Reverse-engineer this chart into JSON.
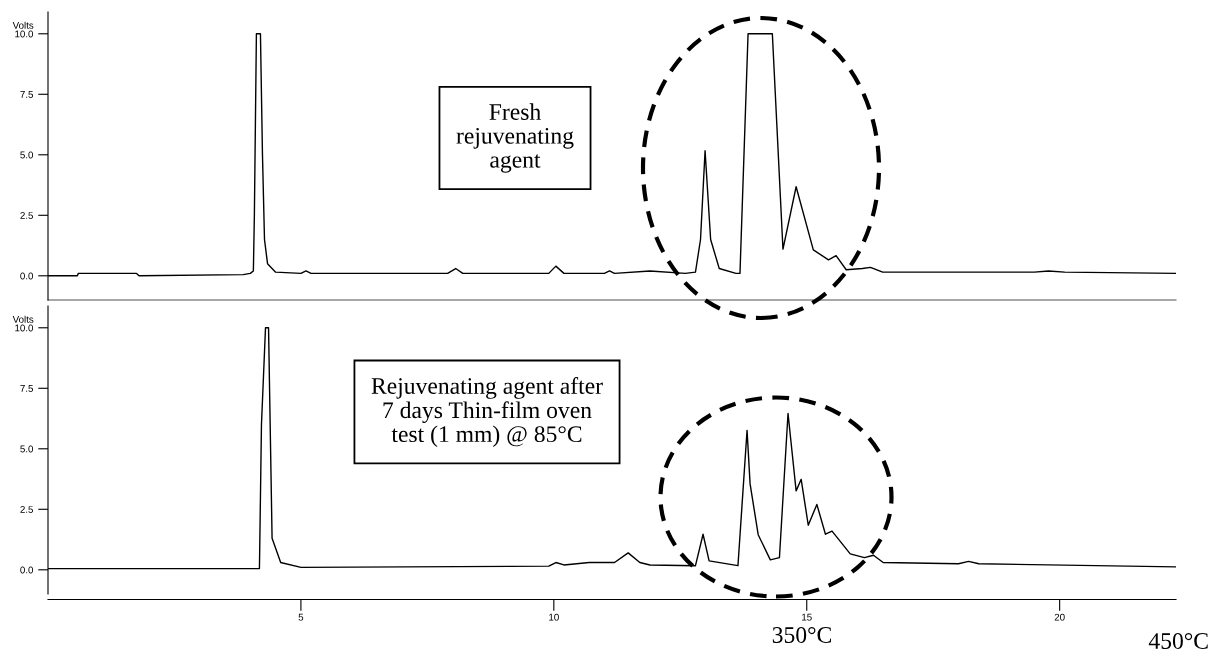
{
  "chart_data": [
    {
      "type": "line",
      "ylabel": "Volts",
      "xlim": [
        0,
        22.3
      ],
      "ylim": [
        -1,
        10.9
      ],
      "tick_labels": "y",
      "yticks": [
        {
          "value": 0,
          "label": "0.0"
        },
        {
          "value": 2.5,
          "label": "2.5"
        },
        {
          "value": 5,
          "label": "5.0"
        },
        {
          "value": 7.5,
          "label": "7.5"
        },
        {
          "value": 10,
          "label": "10.0"
        }
      ],
      "annotations": [
        "Fresh\nrejuvenating\nagent"
      ],
      "series": [
        {
          "color": "#000000",
          "x": [
            0,
            0.58,
            0.6,
            1.75,
            1.8,
            3.86,
            4.0,
            4.06,
            4.08,
            4.12,
            4.2,
            4.24,
            4.28,
            4.34,
            4.5,
            5.0,
            5.1,
            5.2,
            7.9,
            8.06,
            8.2,
            9.9,
            10.04,
            10.2,
            11.0,
            11.1,
            11.2,
            11.9,
            12.6,
            12.8,
            12.9,
            12.99,
            13.1,
            13.27,
            13.6,
            13.68,
            13.84,
            14.32,
            14.53,
            14.79,
            15.13,
            15.43,
            15.58,
            15.78,
            16.1,
            16.26,
            16.5,
            19.5,
            19.78,
            20.1,
            22.3
          ],
          "values": [
            0.0,
            0.0,
            0.1,
            0.1,
            0.0,
            0.05,
            0.1,
            0.2,
            2.5,
            10,
            10,
            5,
            1.5,
            0.5,
            0.15,
            0.1,
            0.2,
            0.1,
            0.1,
            0.3,
            0.1,
            0.1,
            0.4,
            0.1,
            0.1,
            0.2,
            0.1,
            0.2,
            0.1,
            0.15,
            1.5,
            5.17,
            1.5,
            0.3,
            0.1,
            0.1,
            10,
            10,
            1.1,
            3.68,
            1.07,
            0.66,
            0.83,
            0.25,
            0.3,
            0.35,
            0.15,
            0.15,
            0.2,
            0.15,
            0.1
          ]
        }
      ]
    },
    {
      "type": "line",
      "ylabel": "Volts",
      "xlim": [
        0,
        22.3
      ],
      "ylim": [
        -1,
        10.9
      ],
      "xticks": [
        5,
        10,
        15,
        20
      ],
      "yticks": [
        {
          "value": 0,
          "label": "0.0"
        },
        {
          "value": 2.5,
          "label": "2.5"
        },
        {
          "value": 5,
          "label": "5.0"
        },
        {
          "value": 7.5,
          "label": "7.5"
        },
        {
          "value": 10,
          "label": "10.0"
        }
      ],
      "annotations": [
        "Rejuvenating agent after\n7 days Thin-film oven\ntest (1 mm) @ 85°C",
        "350°C",
        "450°C"
      ],
      "series": [
        {
          "color": "#000000",
          "x": [
            0,
            4.18,
            4.22,
            4.3,
            4.36,
            4.43,
            4.6,
            5.0,
            9.9,
            10.04,
            10.2,
            10.7,
            11.2,
            11.47,
            11.7,
            11.9,
            12.8,
            12.95,
            13.07,
            13.64,
            13.82,
            13.88,
            14.04,
            14.28,
            14.46,
            14.63,
            14.79,
            14.89,
            15.03,
            15.2,
            15.37,
            15.5,
            15.86,
            16.14,
            16.32,
            16.51,
            18.0,
            18.2,
            18.4,
            22.3
          ],
          "values": [
            0.05,
            0.05,
            6,
            10,
            10,
            1.3,
            0.3,
            0.1,
            0.15,
            0.3,
            0.2,
            0.3,
            0.3,
            0.7,
            0.3,
            0.2,
            0.17,
            1.47,
            0.37,
            0.17,
            5.76,
            3.55,
            1.45,
            0.41,
            0.5,
            6.46,
            3.26,
            3.74,
            1.84,
            2.7,
            1.47,
            1.6,
            0.66,
            0.5,
            0.6,
            0.3,
            0.25,
            0.35,
            0.25,
            0.12
          ]
        }
      ]
    }
  ]
}
